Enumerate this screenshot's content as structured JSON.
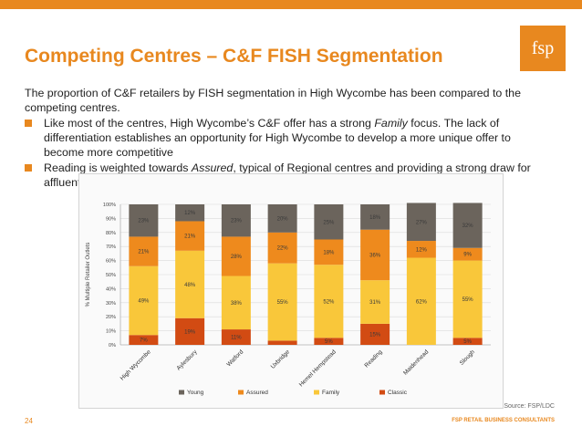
{
  "header": {
    "title": "Competing Centres – C&F FISH Segmentation",
    "logo": "fsp"
  },
  "intro": "The proportion of C&F retailers by FISH segmentation in High Wycombe has been compared to the competing centres.",
  "bullets": [
    {
      "pre": "Like most of the centres, High Wycombe’s C&F offer has a strong ",
      "em": "Family",
      "post": " focus.  The lack of differentiation establishes an opportunity for High Wycombe to develop a more unique offer to become more competitive"
    },
    {
      "pre": "Reading is weighted towards ",
      "em": "Assured",
      "post": ", typical of Regional centres and providing a strong draw for affluent, mobile shoppers"
    }
  ],
  "chart_data": {
    "type": "bar",
    "stacked": true,
    "percent": true,
    "categories": [
      "High Wycombe",
      "Aylesbury",
      "Watford",
      "Uxbridge",
      "Hemel Hempstead",
      "Reading",
      "Maidenhead",
      "Slough"
    ],
    "series": [
      {
        "name": "Young",
        "color": "#6b645c",
        "values": [
          23,
          12,
          23,
          20,
          25,
          18,
          27,
          32
        ],
        "labels": [
          "23%",
          "12%",
          "23%",
          "20%",
          "25%",
          "18%",
          "27%",
          "32%"
        ]
      },
      {
        "name": "Assured",
        "color": "#ee8a1d",
        "values": [
          21,
          21,
          28,
          22,
          18,
          36,
          12,
          9
        ],
        "labels": [
          "21%",
          "21%",
          "28%",
          "22%",
          "18%",
          "36%",
          "12%",
          "9%"
        ]
      },
      {
        "name": "Family",
        "color": "#f9c73a",
        "values": [
          49,
          48,
          38,
          55,
          52,
          31,
          62,
          55
        ],
        "labels": [
          "49%",
          "48%",
          "38%",
          "55%",
          "52%",
          "31%",
          "62%",
          "55%"
        ]
      },
      {
        "name": "Classic",
        "color": "#d24b13",
        "values": [
          7,
          19,
          11,
          3,
          5,
          15,
          0,
          5
        ],
        "labels": [
          "7%",
          "19%",
          "11%",
          "3%",
          "5%",
          "15%",
          "0%",
          "5%"
        ]
      }
    ],
    "ylabel": "% Multiple Retailer Outlets",
    "ylim": [
      0,
      100
    ],
    "yticks": [
      "0%",
      "10%",
      "20%",
      "30%",
      "40%",
      "50%",
      "60%",
      "70%",
      "80%",
      "90%",
      "100%"
    ],
    "legend_position": "bottom",
    "legend_order": [
      "Young",
      "Assured",
      "Family",
      "Classic"
    ]
  },
  "source": "Source: FSP/LDC",
  "footer": {
    "page_number": "24",
    "brand": "FSP RETAIL BUSINESS CONSULTANTS"
  }
}
